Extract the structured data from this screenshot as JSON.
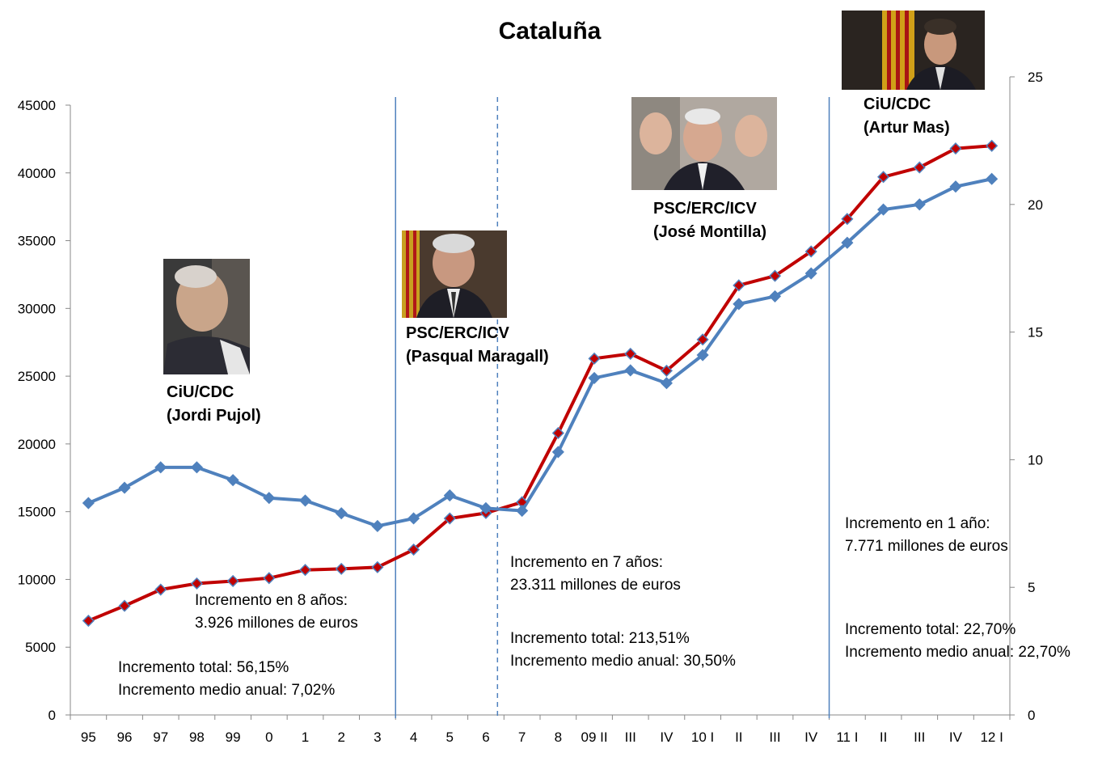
{
  "chart_data": {
    "type": "line",
    "title": "Cataluña",
    "categories": [
      "95",
      "96",
      "97",
      "98",
      "99",
      "0",
      "1",
      "2",
      "3",
      "4",
      "5",
      "6",
      "7",
      "8",
      "09 II",
      "III",
      "IV",
      "10 I",
      "II",
      "III",
      "IV",
      "11 I",
      "II",
      "III",
      "IV",
      "12 I"
    ],
    "y_left": {
      "ticks": [
        "0",
        "5000",
        "10000",
        "15000",
        "20000",
        "25000",
        "30000",
        "35000",
        "40000",
        "45000"
      ],
      "range": [
        0,
        45000
      ]
    },
    "y_right": {
      "ticks": [
        "0",
        "5",
        "10",
        "15",
        "20",
        "25"
      ],
      "range": [
        0,
        25
      ]
    },
    "series": [
      {
        "color": "#c00000",
        "marker_color": "#4f81bd",
        "axis": "left",
        "values": [
          6950,
          8050,
          9250,
          9700,
          9880,
          10100,
          10700,
          10780,
          10900,
          12200,
          14500,
          14900,
          15700,
          20800,
          26300,
          26650,
          25400,
          27700,
          31700,
          32400,
          34200,
          36600,
          39700,
          40400,
          41800,
          42000
        ]
      },
      {
        "color": "#4f81bd",
        "marker_color": "#4f81bd",
        "axis": "right",
        "values": [
          8.3,
          8.9,
          9.7,
          9.7,
          9.2,
          8.5,
          8.4,
          7.9,
          7.4,
          7.7,
          8.6,
          8.1,
          8.0,
          10.3,
          13.2,
          13.5,
          13.0,
          14.1,
          16.1,
          16.4,
          17.3,
          18.5,
          19.8,
          20.0,
          20.7,
          21.0
        ]
      }
    ],
    "dividers": [
      {
        "after_category": "3",
        "style": "solid"
      },
      {
        "after_category": "6",
        "style": "dashed"
      },
      {
        "after_category": "IV",
        "style": "solid",
        "index": 20
      }
    ],
    "grid": false,
    "legend": "none"
  },
  "annotations": {
    "pujol": {
      "party": "CiU/CDC",
      "name": "(Jordi Pujol)"
    },
    "maragall": {
      "party": "PSC/ERC/ICV",
      "name": "(Pasqual Maragall)"
    },
    "montilla": {
      "party": "PSC/ERC/ICV",
      "name": "(José Montilla)"
    },
    "mas": {
      "party": "CiU/CDC",
      "name": "(Artur Mas)"
    },
    "period1": {
      "increment": "Incremento en 8 años:",
      "amount": "3.926 millones de euros",
      "total": "Incremento total: 56,15%",
      "annual": "Incremento medio anual: 7,02%"
    },
    "period2": {
      "increment": "Incremento en 7 años:",
      "amount": "23.311 millones de euros",
      "total": "Incremento total: 213,51%",
      "annual": "Incremento medio anual: 30,50%"
    },
    "period3": {
      "increment": "Incremento en 1 año:",
      "amount": "7.771 millones de euros",
      "total": "Incremento total: 22,70%",
      "annual": "Incremento medio anual: 22,70%"
    }
  }
}
